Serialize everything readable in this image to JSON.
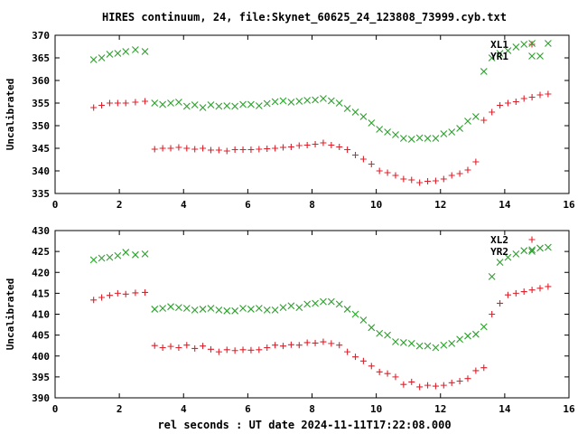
{
  "window_title": "HIRES continuum, 24, file:Skynet_60625_24_123808_73999.cyb.txt",
  "xlabel": "rel seconds : UT date 2024-11-11T17:22:08.000",
  "colors": {
    "plus_series": "#e0202a",
    "cross_series": "#2ca02c"
  },
  "chart_data": [
    {
      "type": "scatter",
      "ylabel": "Uncalibrated",
      "xlim": [
        0,
        16
      ],
      "ylim": [
        335,
        370
      ],
      "xticks": [
        0,
        2,
        4,
        6,
        8,
        10,
        12,
        14,
        16
      ],
      "yticks": [
        335,
        340,
        345,
        350,
        355,
        360,
        365,
        370
      ],
      "grid": false,
      "legend_position": "top-right",
      "series": [
        {
          "name": "XL1",
          "marker": "plus",
          "color": "#e0202a",
          "x": [
            1.2,
            1.45,
            1.7,
            1.95,
            2.2,
            2.5,
            2.8,
            3.1,
            3.35,
            3.6,
            3.85,
            4.1,
            4.35,
            4.6,
            4.85,
            5.1,
            5.35,
            5.6,
            5.85,
            6.1,
            6.35,
            6.6,
            6.85,
            7.1,
            7.35,
            7.6,
            7.85,
            8.1,
            8.35,
            8.6,
            8.85,
            9.1,
            9.35,
            9.6,
            9.85,
            10.1,
            10.35,
            10.6,
            10.85,
            11.1,
            11.35,
            11.6,
            11.85,
            12.1,
            12.35,
            12.6,
            12.85,
            13.1,
            13.35,
            13.6,
            13.85,
            14.1,
            14.35,
            14.6,
            14.85,
            15.1,
            15.35
          ],
          "y": [
            354,
            354.5,
            355,
            355,
            355,
            355.2,
            355.4,
            344.8,
            345,
            345,
            345.2,
            345,
            344.8,
            345,
            344.6,
            344.6,
            344.4,
            344.7,
            344.7,
            344.7,
            344.8,
            344.9,
            345,
            345.2,
            345.3,
            345.6,
            345.7,
            345.9,
            346.2,
            345.7,
            345.3,
            344.7,
            343.5,
            342.6,
            341.5,
            340,
            339.6,
            339,
            338.2,
            338,
            337.4,
            337.7,
            337.8,
            338.2,
            339,
            339.4,
            340.2,
            342,
            351.2,
            353,
            354.5,
            355,
            355.3,
            356,
            356.3,
            356.8,
            357
          ]
        },
        {
          "name": "YR1",
          "marker": "cross",
          "color": "#2ca02c",
          "x": [
            1.2,
            1.45,
            1.7,
            1.95,
            2.2,
            2.5,
            2.8,
            3.1,
            3.35,
            3.6,
            3.85,
            4.1,
            4.35,
            4.6,
            4.85,
            5.1,
            5.35,
            5.6,
            5.85,
            6.1,
            6.35,
            6.6,
            6.85,
            7.1,
            7.35,
            7.6,
            7.85,
            8.1,
            8.35,
            8.6,
            8.85,
            9.1,
            9.35,
            9.6,
            9.85,
            10.1,
            10.35,
            10.6,
            10.85,
            11.1,
            11.35,
            11.6,
            11.85,
            12.1,
            12.35,
            12.6,
            12.85,
            13.1,
            13.35,
            13.6,
            13.85,
            14.1,
            14.35,
            14.6,
            14.85,
            15.1,
            15.35
          ],
          "y": [
            364.6,
            365,
            365.8,
            366,
            366.4,
            366.8,
            366.4,
            355,
            354.7,
            355,
            355.2,
            354.3,
            354.6,
            354,
            354.6,
            354.3,
            354.4,
            354.3,
            354.7,
            354.7,
            354.4,
            354.9,
            355.3,
            355.5,
            355.2,
            355.4,
            355.6,
            355.7,
            356,
            355.5,
            355,
            353.8,
            353,
            352,
            350.6,
            349.2,
            348.6,
            348,
            347.2,
            347,
            347.3,
            347.2,
            347.2,
            348.2,
            348.6,
            349.4,
            351,
            352,
            362,
            365,
            366,
            366.6,
            367.4,
            368,
            368.2,
            365.4,
            368.2
          ]
        }
      ]
    },
    {
      "type": "scatter",
      "ylabel": "Uncalibrated",
      "xlim": [
        0,
        16
      ],
      "ylim": [
        390,
        430
      ],
      "xticks": [
        0,
        2,
        4,
        6,
        8,
        10,
        12,
        14,
        16
      ],
      "yticks": [
        390,
        395,
        400,
        405,
        410,
        415,
        420,
        425,
        430
      ],
      "grid": false,
      "legend_position": "top-right",
      "series": [
        {
          "name": "XL2",
          "marker": "plus",
          "color": "#e0202a",
          "x": [
            1.2,
            1.45,
            1.7,
            1.95,
            2.2,
            2.5,
            2.8,
            3.1,
            3.35,
            3.6,
            3.85,
            4.1,
            4.35,
            4.6,
            4.85,
            5.1,
            5.35,
            5.6,
            5.85,
            6.1,
            6.35,
            6.6,
            6.85,
            7.1,
            7.35,
            7.6,
            7.85,
            8.1,
            8.35,
            8.6,
            8.85,
            9.1,
            9.35,
            9.6,
            9.85,
            10.1,
            10.35,
            10.6,
            10.85,
            11.1,
            11.35,
            11.6,
            11.85,
            12.1,
            12.35,
            12.6,
            12.85,
            13.1,
            13.35,
            13.6,
            13.85,
            14.1,
            14.35,
            14.6,
            14.85,
            15.1,
            15.35
          ],
          "y": [
            413.4,
            414,
            414.5,
            415,
            414.8,
            415.1,
            415.2,
            402.5,
            402,
            402.3,
            402,
            402.6,
            401.8,
            402.4,
            401.6,
            401,
            401.5,
            401.3,
            401.5,
            401.4,
            401.5,
            402,
            402.6,
            402.4,
            402.7,
            402.6,
            403.2,
            403.1,
            403.4,
            403,
            402.6,
            401,
            399.8,
            398.8,
            397.6,
            396.2,
            395.8,
            395,
            393.2,
            393.8,
            392.6,
            393,
            392.8,
            393,
            393.6,
            394,
            394.6,
            396.5,
            397.2,
            410,
            412.6,
            414.6,
            415,
            415.4,
            415.8,
            416.2,
            416.6
          ]
        },
        {
          "name": "YR2",
          "marker": "cross",
          "color": "#2ca02c",
          "x": [
            1.2,
            1.45,
            1.7,
            1.95,
            2.2,
            2.5,
            2.8,
            3.1,
            3.35,
            3.6,
            3.85,
            4.1,
            4.35,
            4.6,
            4.85,
            5.1,
            5.35,
            5.6,
            5.85,
            6.1,
            6.35,
            6.6,
            6.85,
            7.1,
            7.35,
            7.6,
            7.85,
            8.1,
            8.35,
            8.6,
            8.85,
            9.1,
            9.35,
            9.6,
            9.85,
            10.1,
            10.35,
            10.6,
            10.85,
            11.1,
            11.35,
            11.6,
            11.85,
            12.1,
            12.35,
            12.6,
            12.85,
            13.1,
            13.35,
            13.6,
            13.85,
            14.1,
            14.35,
            14.6,
            14.85,
            15.1,
            15.35
          ],
          "y": [
            423,
            423.4,
            423.6,
            424,
            424.8,
            424.2,
            424.4,
            411.2,
            411.4,
            411.8,
            411.6,
            411.4,
            411,
            411.2,
            411.4,
            411,
            410.8,
            410.8,
            411.4,
            411.2,
            411.4,
            411,
            411,
            411.6,
            412,
            411.6,
            412.4,
            412.6,
            413,
            413,
            412.4,
            411.2,
            410,
            408.6,
            406.8,
            405.4,
            405,
            403.4,
            403.2,
            403,
            402.4,
            402.4,
            402,
            402.6,
            403,
            404,
            404.8,
            405.2,
            407,
            419,
            422.4,
            423.6,
            424.4,
            425.2,
            425.4,
            425.8,
            426
          ]
        }
      ]
    }
  ]
}
